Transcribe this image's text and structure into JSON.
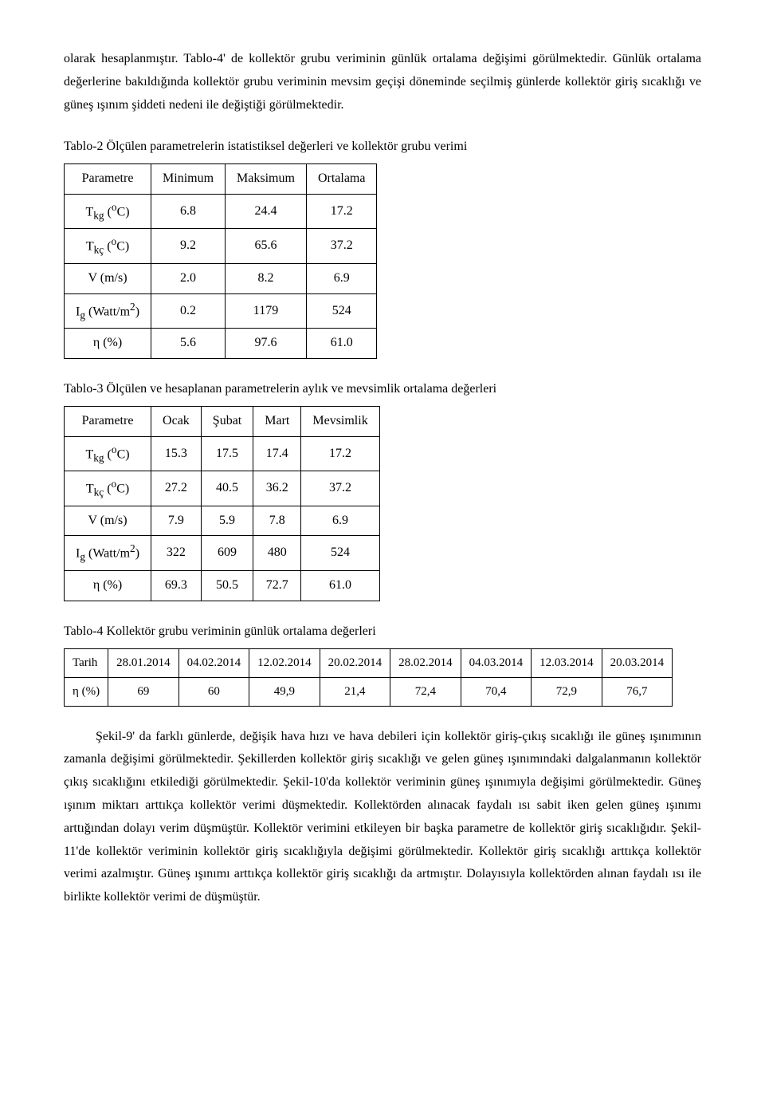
{
  "intro": {
    "p1a": "olarak hesaplanmıştır. Tablo-4' de kollektör grubu veriminin günlük ortalama değişimi görülmektedir. Günlük ortalama değerlerine bakıldığında kollektör grubu veriminin mevsim geçişi döneminde seçilmiş günlerde kollektör giriş sıcaklığı ve güneş ışınım şiddeti nedeni ile değiştiği görülmektedir."
  },
  "table2": {
    "caption": "Tablo-2 Ölçülen parametrelerin istatistiksel değerleri ve kollektör grubu verimi",
    "headers": [
      "Parametre",
      "Minimum",
      "Maksimum",
      "Ortalama"
    ],
    "rows": [
      {
        "p_html": "T<sub>kg</sub> (<sup>o</sup>C)",
        "v": [
          "6.8",
          "24.4",
          "17.2"
        ]
      },
      {
        "p_html": "T<sub>kç</sub> (<sup>o</sup>C)",
        "v": [
          "9.2",
          "65.6",
          "37.2"
        ]
      },
      {
        "p_html": "V (m/s)",
        "v": [
          "2.0",
          "8.2",
          "6.9"
        ]
      },
      {
        "p_html": "I<sub>g</sub> (Watt/m<sup>2</sup>)",
        "v": [
          "0.2",
          "1179",
          "524"
        ]
      },
      {
        "p_html": "η (%)",
        "v": [
          "5.6",
          "97.6",
          "61.0"
        ]
      }
    ]
  },
  "table3": {
    "caption": "Tablo-3 Ölçülen ve hesaplanan parametrelerin aylık ve mevsimlik ortalama değerleri",
    "headers": [
      "Parametre",
      "Ocak",
      "Şubat",
      "Mart",
      "Mevsimlik"
    ],
    "rows": [
      {
        "p_html": "T<sub>kg</sub> (<sup>o</sup>C)",
        "v": [
          "15.3",
          "17.5",
          "17.4",
          "17.2"
        ]
      },
      {
        "p_html": "T<sub>kç</sub> (<sup>o</sup>C)",
        "v": [
          "27.2",
          "40.5",
          "36.2",
          "37.2"
        ]
      },
      {
        "p_html": "V (m/s)",
        "v": [
          "7.9",
          "5.9",
          "7.8",
          "6.9"
        ]
      },
      {
        "p_html": "I<sub>g</sub> (Watt/m<sup>2</sup>)",
        "v": [
          "322",
          "609",
          "480",
          "524"
        ]
      },
      {
        "p_html": "η (%)",
        "v": [
          "69.3",
          "50.5",
          "72.7",
          "61.0"
        ]
      }
    ]
  },
  "table4": {
    "caption": "Tablo-4 Kollektör grubu veriminin günlük ortalama değerleri",
    "row1_label": "Tarih",
    "row1": [
      "28.01.2014",
      "04.02.2014",
      "12.02.2014",
      "20.02.2014",
      "28.02.2014",
      "04.03.2014",
      "12.03.2014",
      "20.03.2014"
    ],
    "row2_label": "η (%)",
    "row2": [
      "69",
      "60",
      "49,9",
      "21,4",
      "72,4",
      "70,4",
      "72,9",
      "76,7"
    ]
  },
  "closing": {
    "p": "Şekil-9' da farklı günlerde, değişik hava hızı ve hava debileri için kollektör giriş-çıkış sıcaklığı ile güneş ışınımının zamanla değişimi görülmektedir. Şekillerden kollektör giriş sıcaklığı ve gelen güneş ışınımındaki dalgalanmanın kollektör çıkış sıcaklığını etkilediği görülmektedir. Şekil-10'da kollektör veriminin güneş ışınımıyla değişimi görülmektedir. Güneş ışınım miktarı arttıkça kollektör verimi düşmektedir. Kollektörden alınacak faydalı ısı sabit iken gelen güneş ışınımı arttığından dolayı verim düşmüştür. Kollektör verimini etkileyen bir başka parametre de kollektör giriş sıcaklığıdır. Şekil-11'de kollektör veriminin kollektör giriş sıcaklığıyla değişimi görülmektedir. Kollektör giriş sıcaklığı arttıkça kollektör verimi azalmıştır. Güneş ışınımı arttıkça kollektör giriş sıcaklığı da artmıştır. Dolayısıyla kollektörden alınan faydalı ısı ile birlikte kollektör verimi de düşmüştür."
  }
}
